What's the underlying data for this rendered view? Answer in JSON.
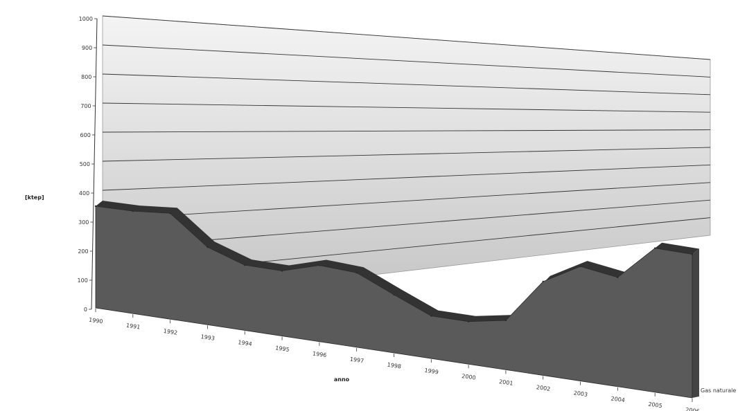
{
  "chart_data": {
    "type": "area",
    "title": "",
    "xlabel": "anno",
    "ylabel": "[ktep]",
    "ylim": [
      0,
      1000
    ],
    "yticks": [
      "0",
      "100",
      "200",
      "300",
      "400",
      "500",
      "600",
      "700",
      "800",
      "900",
      "1000"
    ],
    "categories": [
      "1990",
      "1991",
      "1992",
      "1993",
      "1994",
      "1995",
      "1996",
      "1997",
      "1998",
      "1999",
      "2000",
      "2001",
      "2002",
      "2003",
      "2004",
      "2005",
      "2006"
    ],
    "series": [
      {
        "name": "Gas naturale",
        "values": [
          350,
          360,
          380,
          285,
          245,
          250,
          300,
          300,
          240,
          180,
          185,
          220,
          430,
          540,
          530,
          720,
          740
        ]
      }
    ],
    "grid": true,
    "colors": {
      "area_front": "#5a5a5a",
      "area_top": "#333333",
      "area_side": "#444444",
      "wall_top": "#f4f4f4",
      "wall_bottom": "#c4c4c4",
      "gridline": "#333333"
    }
  }
}
